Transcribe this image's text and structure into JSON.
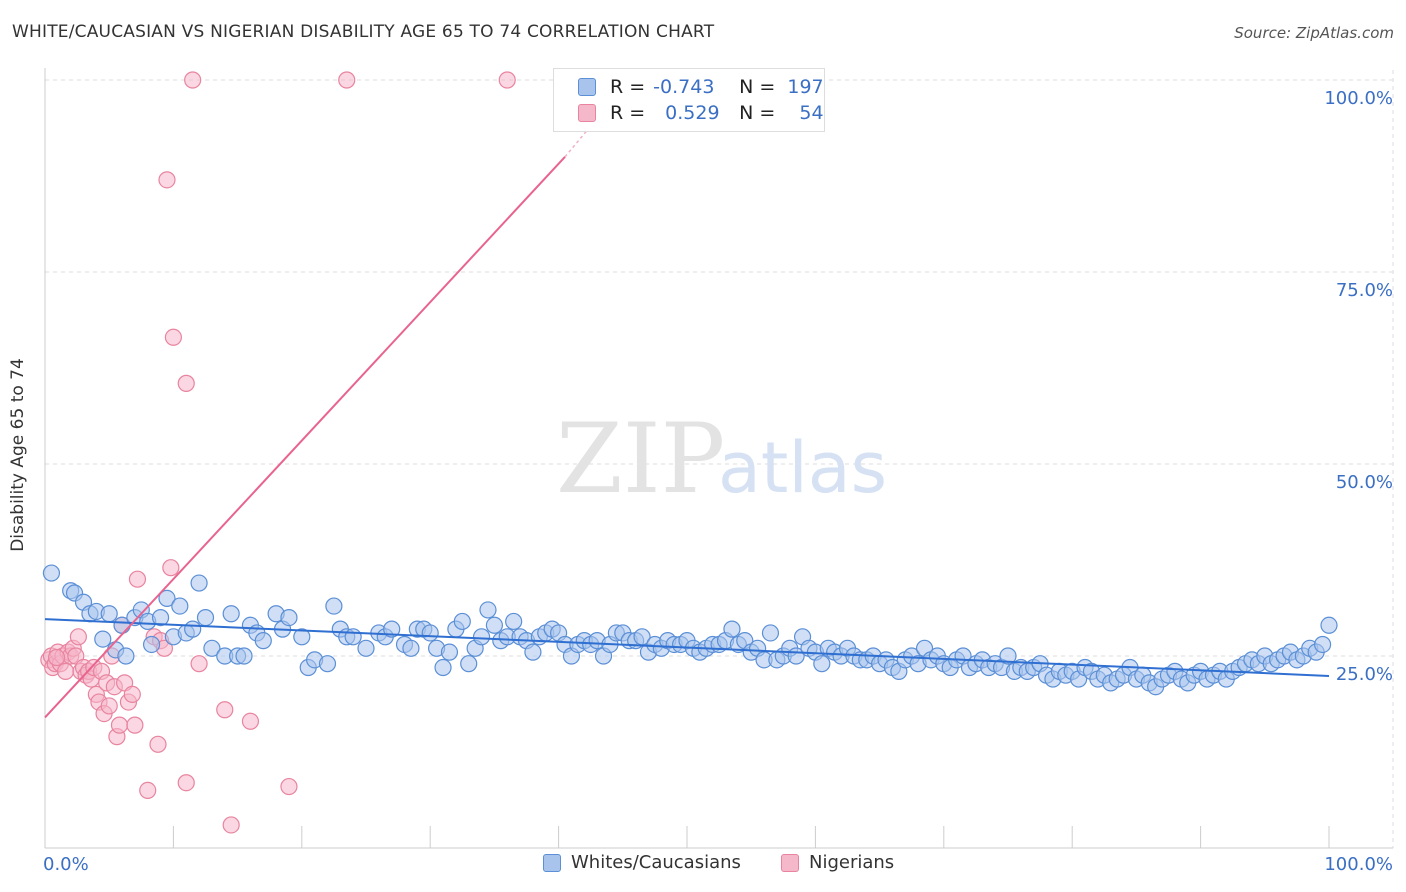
{
  "title": "WHITE/CAUCASIAN VS NIGERIAN DISABILITY AGE 65 TO 74 CORRELATION CHART",
  "source": "Source: ZipAtlas.com",
  "watermark": {
    "zip": "ZIP",
    "atlas": "atlas"
  },
  "legend": {
    "rows": [
      {
        "r_label": "R =",
        "r_value": "-0.743",
        "n_label": "N =",
        "n_value": "197"
      },
      {
        "r_label": "R =",
        "r_value": "0.529",
        "n_label": "N =",
        "n_value": "54"
      }
    ]
  },
  "bottom_legend": [
    "Whites/Caucasians",
    "Nigerians"
  ],
  "colors": {
    "blue_fill": "#a9c4ec",
    "blue_stroke": "#5b8fd6",
    "blue_line": "#2f6fd1",
    "pink_fill": "#f5b7ca",
    "pink_stroke": "#e8849f",
    "pink_line": "#e8648f",
    "tick_label": "#3a6fc4",
    "grid": "#dddddd"
  },
  "chart_data": {
    "type": "scatter",
    "title": "WHITE/CAUCASIAN VS NIGERIAN DISABILITY AGE 65 TO 74 CORRELATION CHART",
    "xlabel": "",
    "ylabel": "Disability Age 65 to 74",
    "xlim": [
      0,
      100
    ],
    "ylim": [
      0,
      100
    ],
    "x_tick_labels": [
      "0.0%",
      "100.0%"
    ],
    "y_ticks": [
      25,
      50,
      75,
      100
    ],
    "y_tick_labels": [
      "25.0%",
      "50.0%",
      "75.0%",
      "100.0%"
    ],
    "series": [
      {
        "name": "Whites/Caucasians",
        "r": -0.743,
        "n": 197,
        "trend": {
          "x": [
            0,
            100
          ],
          "y": [
            29.8,
            22.4
          ]
        },
        "points": [
          [
            0.5,
            35.8
          ],
          [
            2,
            33.5
          ],
          [
            2.3,
            33.2
          ],
          [
            3,
            32
          ],
          [
            3.5,
            30.5
          ],
          [
            4,
            30.8
          ],
          [
            4.5,
            27.2
          ],
          [
            5,
            30.5
          ],
          [
            5.5,
            25.8
          ],
          [
            6,
            29
          ],
          [
            6.3,
            25
          ],
          [
            7,
            30
          ],
          [
            7.5,
            31
          ],
          [
            8,
            29.5
          ],
          [
            8.3,
            26.5
          ],
          [
            9,
            30
          ],
          [
            9.5,
            32.5
          ],
          [
            10,
            27.5
          ],
          [
            10.5,
            31.5
          ],
          [
            11,
            28
          ],
          [
            11.5,
            28.5
          ],
          [
            12,
            34.5
          ],
          [
            12.5,
            30
          ],
          [
            13,
            26
          ],
          [
            14,
            25
          ],
          [
            14.5,
            30.5
          ],
          [
            15,
            25
          ],
          [
            15.5,
            25
          ],
          [
            16,
            29
          ],
          [
            16.5,
            28
          ],
          [
            17,
            27
          ],
          [
            18,
            30.5
          ],
          [
            18.5,
            28.5
          ],
          [
            19,
            30
          ],
          [
            20,
            27.5
          ],
          [
            20.5,
            23.5
          ],
          [
            21,
            24.5
          ],
          [
            22,
            24
          ],
          [
            22.5,
            31.5
          ],
          [
            23,
            28.5
          ],
          [
            23.5,
            27.5
          ],
          [
            24,
            27.5
          ],
          [
            25,
            26
          ],
          [
            26,
            28
          ],
          [
            26.5,
            27.5
          ],
          [
            27,
            28.5
          ],
          [
            28,
            26.5
          ],
          [
            28.5,
            26
          ],
          [
            29,
            28.5
          ],
          [
            29.5,
            28.5
          ],
          [
            30,
            28
          ],
          [
            30.5,
            26
          ],
          [
            31,
            23.5
          ],
          [
            31.5,
            25.5
          ],
          [
            32,
            28.5
          ],
          [
            32.5,
            29.5
          ],
          [
            33,
            24
          ],
          [
            33.5,
            26
          ],
          [
            34,
            27.5
          ],
          [
            34.5,
            31
          ],
          [
            35,
            29
          ],
          [
            35.5,
            27
          ],
          [
            36,
            27.5
          ],
          [
            36.5,
            29.5
          ],
          [
            37,
            27.5
          ],
          [
            37.5,
            27
          ],
          [
            38,
            25.5
          ],
          [
            38.5,
            27.5
          ],
          [
            39,
            28
          ],
          [
            39.5,
            28.5
          ],
          [
            40,
            28
          ],
          [
            40.5,
            26.5
          ],
          [
            41,
            25
          ],
          [
            41.5,
            26.5
          ],
          [
            42,
            27
          ],
          [
            42.5,
            26.5
          ],
          [
            43,
            27
          ],
          [
            43.5,
            25
          ],
          [
            44,
            26.5
          ],
          [
            44.5,
            28
          ],
          [
            45,
            28
          ],
          [
            45.5,
            27
          ],
          [
            46,
            27
          ],
          [
            46.5,
            27.5
          ],
          [
            47,
            25.5
          ],
          [
            47.5,
            26.5
          ],
          [
            48,
            26
          ],
          [
            48.5,
            27
          ],
          [
            49,
            26.5
          ],
          [
            49.5,
            26.5
          ],
          [
            50,
            27
          ],
          [
            50.5,
            26
          ],
          [
            51,
            25.5
          ],
          [
            51.5,
            26
          ],
          [
            52,
            26.5
          ],
          [
            52.5,
            26.5
          ],
          [
            53,
            27
          ],
          [
            53.5,
            28.5
          ],
          [
            54,
            26.5
          ],
          [
            54.5,
            27
          ],
          [
            55,
            25.5
          ],
          [
            55.5,
            26
          ],
          [
            56,
            24.5
          ],
          [
            56.5,
            28
          ],
          [
            57,
            24.5
          ],
          [
            57.5,
            25
          ],
          [
            58,
            26
          ],
          [
            58.5,
            25
          ],
          [
            59,
            27.5
          ],
          [
            59.5,
            26
          ],
          [
            60,
            25.5
          ],
          [
            60.5,
            24
          ],
          [
            61,
            26
          ],
          [
            61.5,
            25.5
          ],
          [
            62,
            25
          ],
          [
            62.5,
            26
          ],
          [
            63,
            25
          ],
          [
            63.5,
            24.5
          ],
          [
            64,
            24.5
          ],
          [
            64.5,
            25
          ],
          [
            65,
            24
          ],
          [
            65.5,
            24.5
          ],
          [
            66,
            23.5
          ],
          [
            66.5,
            23
          ],
          [
            67,
            24.5
          ],
          [
            67.5,
            25
          ],
          [
            68,
            24
          ],
          [
            68.5,
            26
          ],
          [
            69,
            24.5
          ],
          [
            69.5,
            25
          ],
          [
            70,
            24
          ],
          [
            70.5,
            23.5
          ],
          [
            71,
            24.5
          ],
          [
            71.5,
            25
          ],
          [
            72,
            23.5
          ],
          [
            72.5,
            24
          ],
          [
            73,
            24.5
          ],
          [
            73.5,
            23.5
          ],
          [
            74,
            24
          ],
          [
            74.5,
            23.5
          ],
          [
            75,
            25
          ],
          [
            75.5,
            23
          ],
          [
            76,
            23.5
          ],
          [
            76.5,
            23
          ],
          [
            77,
            23.5
          ],
          [
            77.5,
            24
          ],
          [
            78,
            22.5
          ],
          [
            78.5,
            22
          ],
          [
            79,
            23
          ],
          [
            79.5,
            22.5
          ],
          [
            80,
            23
          ],
          [
            80.5,
            22
          ],
          [
            81,
            23.5
          ],
          [
            81.5,
            23
          ],
          [
            82,
            22
          ],
          [
            82.5,
            22.5
          ],
          [
            83,
            21.5
          ],
          [
            83.5,
            22
          ],
          [
            84,
            22.5
          ],
          [
            84.5,
            23.5
          ],
          [
            85,
            22
          ],
          [
            85.5,
            22.5
          ],
          [
            86,
            21.5
          ],
          [
            86.5,
            21
          ],
          [
            87,
            22
          ],
          [
            87.5,
            22.5
          ],
          [
            88,
            23
          ],
          [
            88.5,
            22
          ],
          [
            89,
            21.5
          ],
          [
            89.5,
            22.5
          ],
          [
            90,
            23
          ],
          [
            90.5,
            22
          ],
          [
            91,
            22.5
          ],
          [
            91.5,
            23
          ],
          [
            92,
            22
          ],
          [
            92.5,
            23
          ],
          [
            93,
            23.5
          ],
          [
            93.5,
            24
          ],
          [
            94,
            24.5
          ],
          [
            94.5,
            24
          ],
          [
            95,
            25
          ],
          [
            95.5,
            24
          ],
          [
            96,
            24.5
          ],
          [
            96.5,
            25
          ],
          [
            97,
            25.5
          ],
          [
            97.5,
            24.5
          ],
          [
            98,
            25
          ],
          [
            98.5,
            26
          ],
          [
            99,
            25.5
          ],
          [
            99.5,
            26.5
          ],
          [
            100,
            29
          ]
        ]
      },
      {
        "name": "Nigerians",
        "r": 0.529,
        "n": 54,
        "trend": {
          "x": [
            0,
            40.5
          ],
          "y": [
            17.0,
            90.0
          ],
          "dashed_to": {
            "x": 42.5,
            "y": 94.0
          }
        },
        "points": [
          [
            0.3,
            24.5
          ],
          [
            0.5,
            25
          ],
          [
            0.6,
            23.5
          ],
          [
            0.8,
            24
          ],
          [
            1,
            25.5
          ],
          [
            1.2,
            24
          ],
          [
            1.4,
            25
          ],
          [
            1.6,
            23
          ],
          [
            1.8,
            25.5
          ],
          [
            2,
            25
          ],
          [
            2.2,
            26
          ],
          [
            2.4,
            25
          ],
          [
            2.6,
            27.5
          ],
          [
            2.8,
            23
          ],
          [
            3,
            23.5
          ],
          [
            3.2,
            22.5
          ],
          [
            3.4,
            23
          ],
          [
            3.6,
            22
          ],
          [
            3.8,
            23.5
          ],
          [
            4,
            20
          ],
          [
            4.2,
            19
          ],
          [
            4.4,
            23
          ],
          [
            4.6,
            17.5
          ],
          [
            4.8,
            21.5
          ],
          [
            5,
            18.5
          ],
          [
            5.2,
            25
          ],
          [
            5.4,
            21
          ],
          [
            5.6,
            14.5
          ],
          [
            5.8,
            16
          ],
          [
            6,
            29
          ],
          [
            6.2,
            21.5
          ],
          [
            6.5,
            19
          ],
          [
            6.8,
            20
          ],
          [
            7,
            16
          ],
          [
            7.2,
            35
          ],
          [
            8,
            7.5
          ],
          [
            8.5,
            27.5
          ],
          [
            8.8,
            13.5
          ],
          [
            9,
            27
          ],
          [
            9.3,
            26
          ],
          [
            9.5,
            87
          ],
          [
            9.8,
            36.5
          ],
          [
            10,
            66.5
          ],
          [
            11,
            8.5
          ],
          [
            11,
            60.5
          ],
          [
            11.5,
            100
          ],
          [
            12,
            24
          ],
          [
            14,
            18
          ],
          [
            14.5,
            3
          ],
          [
            16,
            16.5
          ],
          [
            19,
            8
          ],
          [
            23.5,
            100
          ],
          [
            36,
            100
          ],
          [
            0.9,
            24.8
          ]
        ]
      }
    ]
  }
}
